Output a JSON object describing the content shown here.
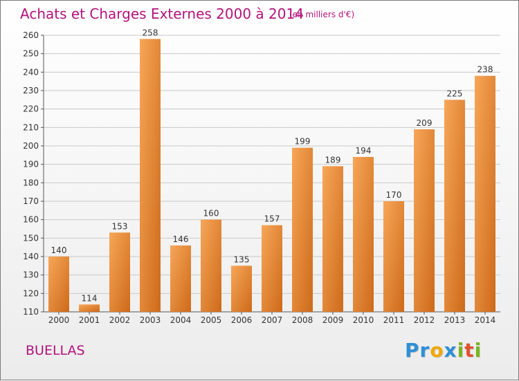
{
  "title": "Achats et Charges Externes 2000 à 2014",
  "unit_note": "(en milliers d'€)",
  "commune": "BUELLAS",
  "logo": {
    "letters": [
      {
        "ch": "P",
        "color": "#2e8fd6"
      },
      {
        "ch": "r",
        "color": "#2e8fd6"
      },
      {
        "ch": "o",
        "color": "#f0a800"
      },
      {
        "ch": "x",
        "color": "#2e8fd6"
      },
      {
        "ch": "i",
        "color": "#78b51f"
      },
      {
        "ch": "t",
        "color": "#e2512f"
      },
      {
        "ch": "i",
        "color": "#78b51f"
      }
    ]
  },
  "colors": {
    "bar_light": "#f7a658",
    "bar_dark": "#cd6a1a",
    "title": "#b3127a",
    "grid": "#c8c8c8"
  },
  "chart_data": {
    "type": "bar",
    "title": "Achats et Charges Externes 2000 à 2014",
    "xlabel": "",
    "ylabel": "(en milliers d'€)",
    "ylim": [
      110,
      260
    ],
    "yticks": [
      110,
      120,
      130,
      140,
      150,
      160,
      170,
      180,
      190,
      200,
      210,
      220,
      230,
      240,
      250,
      260
    ],
    "categories": [
      "2000",
      "2001",
      "2002",
      "2003",
      "2004",
      "2005",
      "2006",
      "2007",
      "2008",
      "2009",
      "2010",
      "2011",
      "2012",
      "2013",
      "2014"
    ],
    "values": [
      140,
      114,
      153,
      258,
      146,
      160,
      135,
      157,
      199,
      189,
      194,
      170,
      209,
      225,
      238
    ],
    "grid": true
  }
}
